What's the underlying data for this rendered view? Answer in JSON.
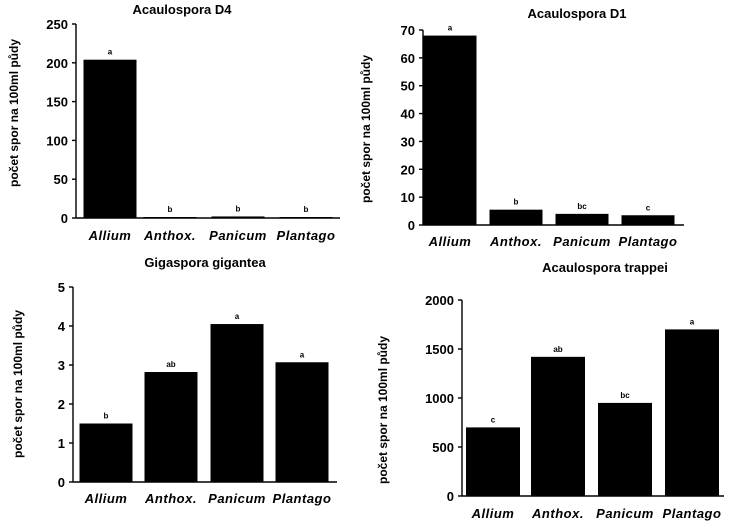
{
  "chart_data": [
    {
      "type": "bar",
      "title": "Acaulospora D4",
      "ylabel": "počet spor na 100ml půdy",
      "categories": [
        "Allium",
        "Anthox.",
        "Panicum",
        "Plantago"
      ],
      "values": [
        204,
        0.5,
        2,
        0.5
      ],
      "letters": [
        "a",
        "b",
        "b",
        "b"
      ],
      "ylim": [
        0,
        250
      ],
      "yticks": [
        "0",
        "50",
        "100",
        "150",
        "200",
        "250"
      ]
    },
    {
      "type": "bar",
      "title": "Acaulospora D1",
      "ylabel": "počet spor na 100ml půdy",
      "categories": [
        "Allium",
        "Anthox.",
        "Panicum",
        "Plantago"
      ],
      "values": [
        68,
        5.5,
        4,
        3.5
      ],
      "letters": [
        "a",
        "b",
        "bc",
        "c"
      ],
      "ylim": [
        0,
        70
      ],
      "yticks": [
        "0",
        "10",
        "20",
        "30",
        "40",
        "50",
        "60",
        "70"
      ]
    },
    {
      "type": "bar",
      "title": "Gigaspora gigantea",
      "ylabel": "počet spor na 100ml půdy",
      "categories": [
        "Allium",
        "Anthox.",
        "Panicum",
        "Plantago"
      ],
      "values": [
        1.5,
        2.82,
        4.05,
        3.07
      ],
      "letters": [
        "b",
        "ab",
        "a",
        "a"
      ],
      "ylim": [
        0,
        5
      ],
      "yticks": [
        "0",
        "1",
        "2",
        "3",
        "4",
        "5"
      ]
    },
    {
      "type": "bar",
      "title": "Acaulospora trappei",
      "ylabel": "počet spor na 100ml půdy",
      "categories": [
        "Allium",
        "Anthox.",
        "Panicum",
        "Plantago"
      ],
      "values": [
        700,
        1420,
        950,
        1700
      ],
      "letters": [
        "c",
        "ab",
        "bc",
        "a"
      ],
      "ylim": [
        0,
        2000
      ],
      "yticks": [
        "0",
        "500",
        "1000",
        "1500",
        "2000"
      ]
    }
  ]
}
